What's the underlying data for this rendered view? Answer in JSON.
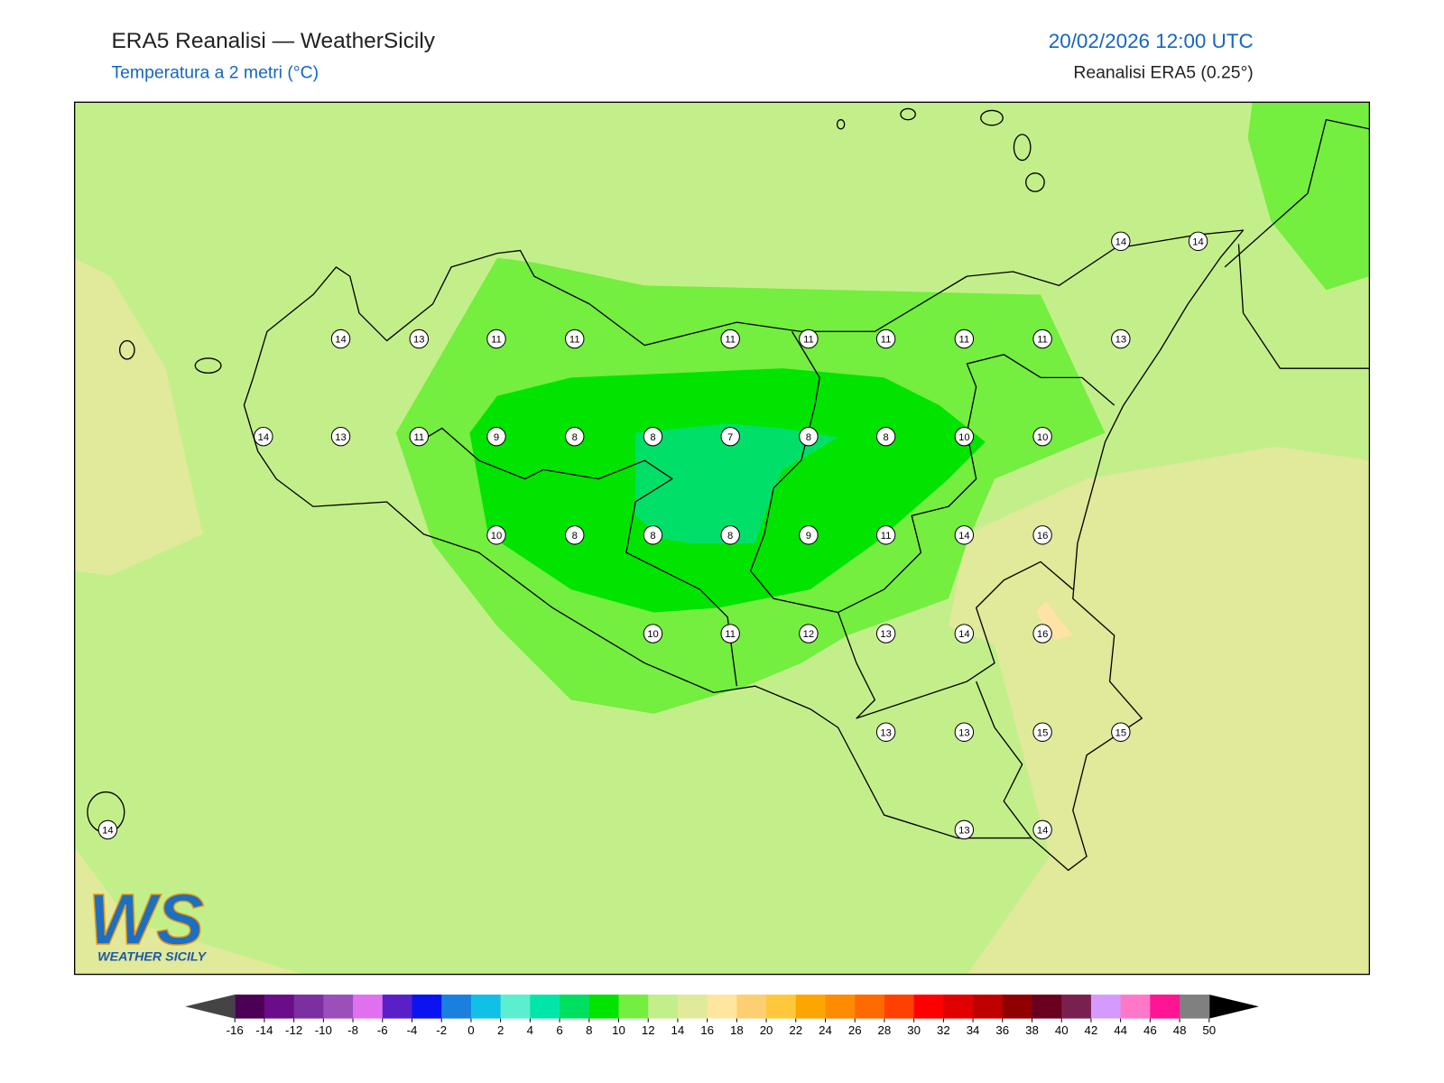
{
  "header": {
    "title": "ERA5 Reanalisi — WeatherSicily",
    "subtitle": "Temperatura a 2 metri (°C)",
    "datetime": "20/02/2026 12:00 UTC",
    "source": "Reanalisi ERA5 (0.25°)"
  },
  "stations": [
    14,
    14,
    14,
    13,
    11,
    11,
    11,
    11,
    11,
    11,
    11,
    13,
    14,
    13,
    11,
    9,
    8,
    8,
    7,
    8,
    8,
    10,
    10,
    10,
    8,
    8,
    8,
    9,
    11,
    14,
    16,
    10,
    11,
    12,
    13,
    14,
    16,
    13,
    13,
    15,
    15,
    14,
    13,
    14
  ],
  "colorbar": {
    "ticks": [
      -16,
      -14,
      -12,
      -10,
      -8,
      -6,
      -4,
      -2,
      0,
      2,
      4,
      6,
      8,
      10,
      12,
      14,
      16,
      18,
      20,
      22,
      24,
      26,
      28,
      30,
      32,
      34,
      36,
      38,
      40,
      42,
      44,
      46,
      48,
      50
    ],
    "colors": [
      "#4b0055",
      "#6a0d8a",
      "#7b2fa0",
      "#9b4fba",
      "#e070f0",
      "#5a20c8",
      "#0a14f0",
      "#1a80e0",
      "#10c0e6",
      "#5ceed0",
      "#00e6a8",
      "#00e060",
      "#00e400",
      "#74ee3f",
      "#c3ef8a",
      "#e1e99a",
      "#ffe6a0",
      "#fcd070",
      "#ffc83c",
      "#ffa500",
      "#ff8c00",
      "#ff6a00",
      "#ff4000",
      "#ff0000",
      "#e00000",
      "#c00000",
      "#900000",
      "#6a0020",
      "#7a2050",
      "#d59aff",
      "#ff78c8",
      "#ff1493",
      "#808080",
      "#3a3a3a"
    ],
    "under": "#444444",
    "over": "#000000"
  },
  "logo": {
    "mark": "WS",
    "text": "WEATHER SICILY"
  }
}
